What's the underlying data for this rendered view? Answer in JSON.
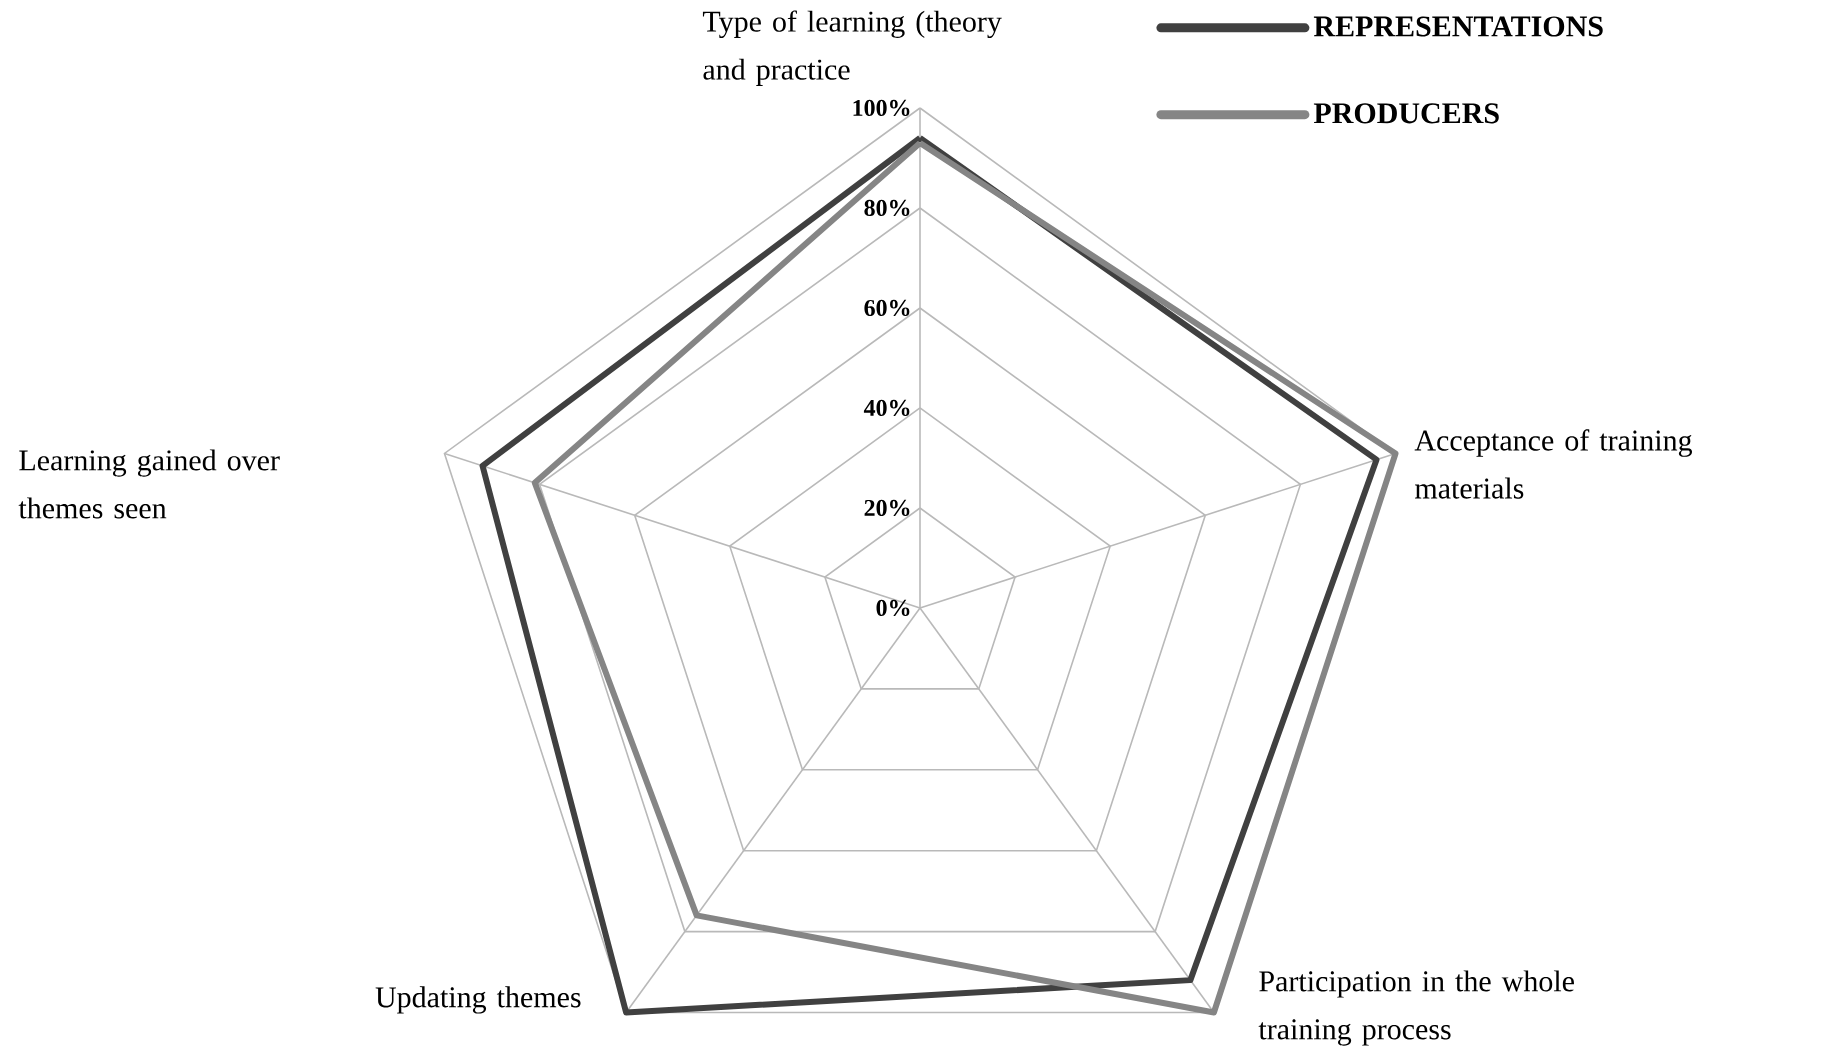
{
  "chart_data": {
    "type": "radar",
    "categories": [
      "Type of learning (theory and practice",
      "Acceptance of training materials",
      "Participation in the whole training process",
      "Updating themes",
      "Learning gained over themes seen"
    ],
    "series": [
      {
        "name": "REPRESENTATIONS",
        "color": "#404040",
        "values": [
          94,
          96,
          92,
          100,
          92
        ]
      },
      {
        "name": "PRODUCERS",
        "color": "#858585",
        "values": [
          93,
          100,
          100,
          76,
          81
        ]
      }
    ],
    "ylim": [
      0,
      100
    ],
    "yticks": [
      {
        "value": 0,
        "label": "0%"
      },
      {
        "value": 20,
        "label": "20%"
      },
      {
        "value": 40,
        "label": "40%"
      },
      {
        "value": 60,
        "label": "60%"
      },
      {
        "value": 80,
        "label": "80%"
      },
      {
        "value": 100,
        "label": "100%"
      }
    ],
    "grid": true,
    "legend": "top right"
  }
}
